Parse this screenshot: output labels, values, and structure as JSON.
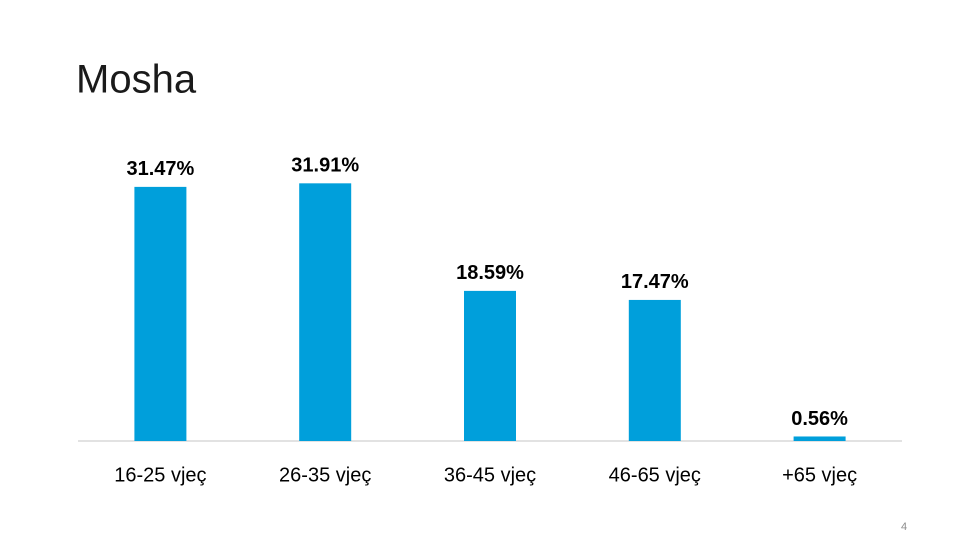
{
  "chart_data": {
    "type": "bar",
    "title": "Mosha",
    "categories": [
      "16-25 vjeç",
      "26-35 vjeç",
      "36-45 vjeç",
      "46-65 vjeç",
      "+65 vjeç"
    ],
    "values": [
      31.47,
      31.91,
      18.59,
      17.47,
      0.56
    ],
    "value_labels": [
      "31.47%",
      "31.91%",
      "18.59%",
      "17.47%",
      "0.56%"
    ],
    "color": "#009fdb",
    "ylim": [
      0,
      40
    ]
  },
  "slide": {
    "page_number": "4"
  }
}
